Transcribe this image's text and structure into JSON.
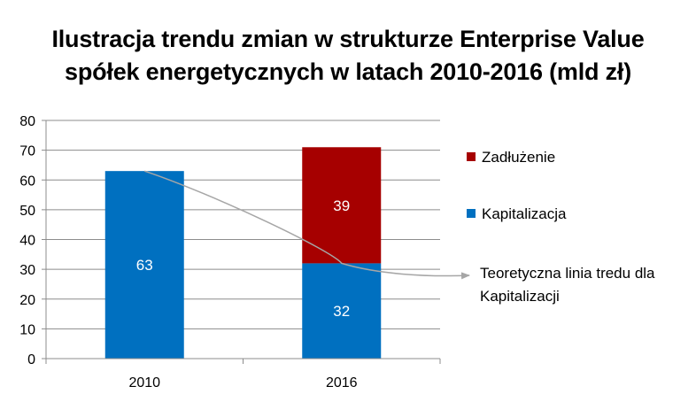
{
  "chart_data": {
    "type": "bar",
    "stacked": true,
    "title_lines": [
      "Ilustracja trendu zmian w strukturze Enterprise Value",
      "spółek energetycznych w latach 2010-2016 (mld zł)"
    ],
    "categories": [
      "2010",
      "2016"
    ],
    "series": [
      {
        "name": "Kapitalizacja",
        "values": [
          63,
          32
        ],
        "color": "#0070c0"
      },
      {
        "name": "Zadłużenie",
        "values": [
          0,
          39
        ],
        "color": "#a60000"
      }
    ],
    "ylim": [
      0,
      80
    ],
    "yticks": [
      0,
      10,
      20,
      30,
      40,
      50,
      60,
      70,
      80
    ],
    "grid": true,
    "legend_position": "right",
    "legend_order": [
      "Zadłużenie",
      "Kapitalizacja"
    ],
    "annotation": {
      "text_lines": [
        "Teoretyczna linia tredu dla",
        "Kapitalizacji"
      ],
      "color": "#a6a6a6"
    }
  }
}
